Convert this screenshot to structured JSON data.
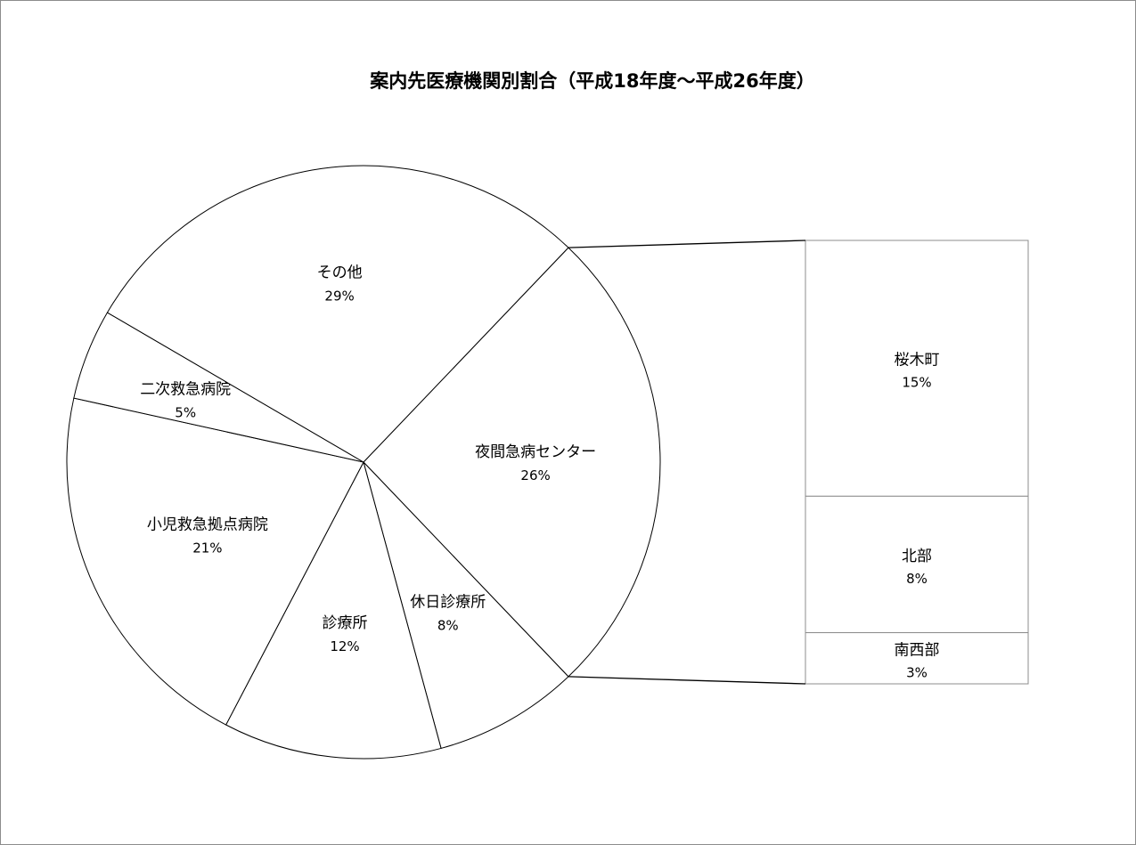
{
  "chart_data": {
    "type": "pie",
    "subtype": "bar-of-pie",
    "title": "案内先医療機関別割合（平成18年度～平成26年度）",
    "slices": [
      {
        "label": "夜間急病センター",
        "value": 26,
        "value_label": "26%"
      },
      {
        "label": "休日診療所",
        "value": 8,
        "value_label": "8%"
      },
      {
        "label": "診療所",
        "value": 12,
        "value_label": "12%"
      },
      {
        "label": "小児救急拠点病院",
        "value": 21,
        "value_label": "21%"
      },
      {
        "label": "二次救急病院",
        "value": 5,
        "value_label": "5%"
      },
      {
        "label": "その他",
        "value": 29,
        "value_label": "29%"
      }
    ],
    "breakdown_of": "夜間急病センター",
    "breakdown": [
      {
        "label": "桜木町",
        "value": 15,
        "value_label": "15%"
      },
      {
        "label": "北部",
        "value": 8,
        "value_label": "8%"
      },
      {
        "label": "南西部",
        "value": 3,
        "value_label": "3%"
      }
    ],
    "fill_color": "#ffffff",
    "stroke_color": "#000000",
    "legend": "none"
  }
}
